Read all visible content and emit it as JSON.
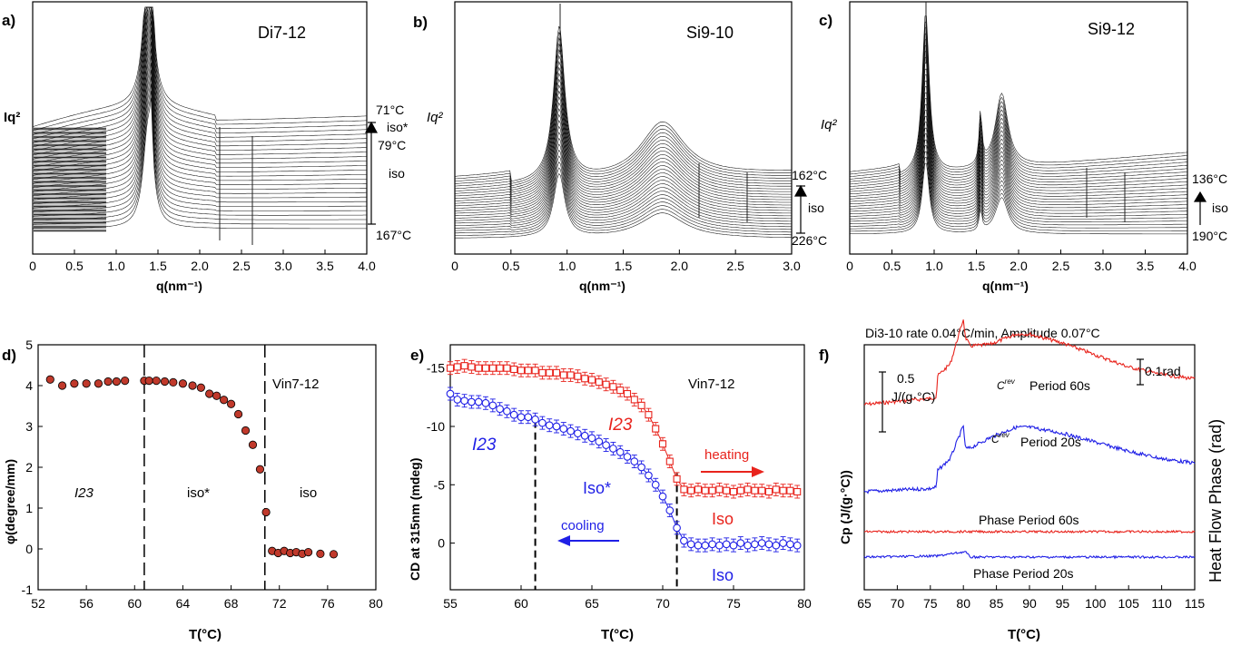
{
  "colors": {
    "red": "#e8231c",
    "blue": "#1f1fe6",
    "black": "#000000",
    "gray_fill": "#9a9a9a"
  },
  "panels": {
    "a": {
      "label": "a)",
      "sample": "Di7-12",
      "ylabel": "Iq²",
      "temps": [
        "71°C",
        "iso*",
        "79°C",
        "iso",
        "167°C"
      ],
      "xticks": [
        "0",
        "0.5",
        "1.0",
        "1.5",
        "2.0",
        "2.5",
        "3.0",
        "3.5",
        "4.0"
      ],
      "xlabel": "q(nm⁻¹)"
    },
    "b": {
      "label": "b)",
      "sample": "Si9-10",
      "ylabel": "Iq²",
      "temps": [
        "162°C",
        "iso",
        "226°C"
      ],
      "xticks": [
        "0",
        "0.5",
        "1.0",
        "1.5",
        "2.0",
        "2.5",
        "3.0"
      ],
      "xlabel": "q(nm⁻¹)"
    },
    "c": {
      "label": "c)",
      "sample": "Si9-12",
      "ylabel": "Iq²",
      "temps": [
        "136°C",
        "iso",
        "190°C"
      ],
      "xticks": [
        "0",
        "0.5",
        "1.0",
        "1.5",
        "2.0",
        "2.5",
        "3.0",
        "3.5",
        "4.0"
      ],
      "xlabel": "q(nm⁻¹)"
    },
    "d": {
      "label": "d)",
      "sample": "Vin7-12",
      "ylabel": "φ(degree/mm)",
      "xlabel": "T(°C)",
      "regions": [
        "I23",
        "iso*",
        "iso"
      ]
    },
    "e": {
      "label": "e)",
      "sample": "Vin7-12",
      "ylabel": "CD at 315nm (mdeg)",
      "xlabel": "T(°C)",
      "annotations": {
        "i23_red": "I23",
        "i23_blue": "I23",
        "iso_star": "Iso*",
        "iso_red": "Iso",
        "iso_blue": "Iso",
        "heating": "heating",
        "cooling": "cooling"
      }
    },
    "f": {
      "label": "f)",
      "title": "Di3-10 rate 0.04°C/min, Amplitude 0.07°C",
      "ylabel": "Cp (J/(g·°C))",
      "ylabel_right": "Heat Flow Phase (rad)",
      "xlabel": "T(°C)",
      "scalebar_cp": [
        "0.5",
        "J/(g·°C)"
      ],
      "scalebar_rad": "0.1rad",
      "curve_labels": [
        "Period 60s",
        "Period 20s",
        "Phase Period 60s",
        "Phase Period 20s"
      ],
      "cp_symbol": "C",
      "cp_superscript": "rev"
    }
  },
  "chart_data": [
    {
      "type": "line",
      "panel": "a",
      "xlabel": "q(nm⁻¹)",
      "ylabel": "Iq²",
      "xlim": [
        0,
        4.0
      ],
      "peaks_q": [
        1.38,
        1.42
      ],
      "temperature_range": [
        "71°C",
        "167°C"
      ],
      "phases": [
        "iso*",
        "iso"
      ]
    },
    {
      "type": "line",
      "panel": "b",
      "xlabel": "q(nm⁻¹)",
      "ylabel": "Iq²",
      "xlim": [
        0,
        3.0
      ],
      "peaks_q": [
        0.93,
        1.85
      ],
      "temperature_range": [
        "162°C",
        "226°C"
      ],
      "phases": [
        "iso"
      ]
    },
    {
      "type": "line",
      "panel": "c",
      "xlabel": "q(nm⁻¹)",
      "ylabel": "Iq²",
      "xlim": [
        0,
        4.0
      ],
      "peaks_q": [
        0.9,
        1.55,
        1.8
      ],
      "temperature_range": [
        "136°C",
        "190°C"
      ],
      "phases": [
        "iso"
      ]
    },
    {
      "type": "scatter",
      "panel": "d",
      "xlabel": "T(°C)",
      "ylabel": "φ(degree/mm)",
      "xlim": [
        52,
        80
      ],
      "ylim": [
        -1,
        5
      ],
      "xticks": [
        52,
        56,
        60,
        64,
        68,
        72,
        76,
        80
      ],
      "yticks": [
        -1,
        0,
        1,
        2,
        3,
        4,
        5
      ],
      "vlines": [
        60.8,
        70.8
      ],
      "x": [
        53.0,
        54.0,
        55.0,
        56.0,
        57.0,
        57.8,
        58.5,
        59.2,
        60.8,
        61.2,
        61.8,
        62.5,
        63.2,
        64.0,
        64.8,
        65.5,
        66.2,
        66.8,
        67.4,
        68.0,
        68.6,
        69.2,
        69.8,
        70.4,
        70.9,
        71.4,
        71.9,
        72.4,
        72.9,
        73.4,
        73.9,
        74.4,
        75.4,
        76.5
      ],
      "y": [
        4.15,
        4.0,
        4.05,
        4.05,
        4.05,
        4.1,
        4.1,
        4.12,
        4.12,
        4.12,
        4.12,
        4.1,
        4.08,
        4.05,
        4.0,
        3.95,
        3.8,
        3.75,
        3.65,
        3.55,
        3.3,
        2.9,
        2.55,
        1.95,
        0.9,
        -0.05,
        -0.1,
        -0.05,
        -0.1,
        -0.08,
        -0.12,
        -0.08,
        -0.12,
        -0.13
      ]
    },
    {
      "type": "line",
      "panel": "e",
      "xlabel": "T(°C)",
      "ylabel": "CD at 315nm (mdeg)",
      "xlim": [
        55,
        80
      ],
      "ylim": [
        -17,
        4
      ],
      "y_inverted": true,
      "xticks": [
        55,
        60,
        65,
        70,
        75,
        80
      ],
      "yticks": [
        -15,
        -10,
        -5,
        0
      ],
      "vlines": [
        61,
        71
      ],
      "series": [
        {
          "name": "heating",
          "x": [
            55.0,
            55.5,
            56.0,
            56.5,
            57.0,
            57.5,
            58.0,
            58.5,
            59.0,
            59.5,
            60.0,
            60.5,
            61.0,
            61.5,
            62.0,
            62.5,
            63.0,
            63.5,
            64.0,
            64.5,
            65.0,
            65.5,
            66.0,
            66.5,
            67.0,
            67.5,
            68.0,
            68.5,
            69.0,
            69.5,
            70.0,
            70.5,
            71.0,
            71.5,
            72.0,
            72.5,
            73.0,
            73.5,
            74.0,
            74.5,
            75.0,
            75.5,
            76.0,
            76.5,
            77.0,
            77.5,
            78.0,
            78.5,
            79.0,
            79.5
          ],
          "y": [
            -15.0,
            -15.1,
            -15.2,
            -15.1,
            -15.0,
            -15.0,
            -15.0,
            -15.0,
            -15.0,
            -14.9,
            -14.8,
            -14.8,
            -14.8,
            -14.6,
            -14.6,
            -14.6,
            -14.4,
            -14.4,
            -14.3,
            -14.1,
            -14.0,
            -13.8,
            -13.6,
            -13.4,
            -13.1,
            -12.8,
            -12.3,
            -11.8,
            -11.0,
            -9.8,
            -8.5,
            -7.0,
            -5.5,
            -4.6,
            -4.5,
            -4.6,
            -4.5,
            -4.5,
            -4.6,
            -4.5,
            -4.4,
            -4.5,
            -4.6,
            -4.5,
            -4.5,
            -4.4,
            -4.6,
            -4.5,
            -4.5,
            -4.4
          ]
        },
        {
          "name": "cooling",
          "x": [
            55.0,
            55.5,
            56.0,
            56.5,
            57.0,
            57.5,
            58.0,
            58.5,
            59.0,
            59.5,
            60.0,
            60.5,
            61.0,
            61.5,
            62.0,
            62.5,
            63.0,
            63.5,
            64.0,
            64.5,
            65.0,
            65.5,
            66.0,
            66.5,
            67.0,
            67.5,
            68.0,
            68.5,
            69.0,
            69.5,
            70.0,
            70.5,
            71.0,
            71.5,
            72.0,
            72.5,
            73.0,
            73.5,
            74.0,
            74.5,
            75.0,
            75.5,
            76.0,
            76.5,
            77.0,
            77.5,
            78.0,
            78.5,
            79.0,
            79.5
          ],
          "y": [
            -12.8,
            -12.3,
            -12.2,
            -12.1,
            -12.1,
            -12.0,
            -11.8,
            -11.5,
            -11.3,
            -11.0,
            -10.8,
            -10.8,
            -10.6,
            -10.3,
            -10.1,
            -10.0,
            -9.8,
            -9.6,
            -9.4,
            -9.2,
            -9.0,
            -8.7,
            -8.4,
            -8.1,
            -7.8,
            -7.4,
            -7.0,
            -6.5,
            -5.8,
            -5.0,
            -4.0,
            -2.8,
            -1.3,
            -0.2,
            0.1,
            0.2,
            0.2,
            0.1,
            0.2,
            0.1,
            0.2,
            0.0,
            0.2,
            0.1,
            0.0,
            0.1,
            0.2,
            0.0,
            0.1,
            0.2
          ]
        }
      ]
    },
    {
      "type": "line",
      "panel": "f",
      "xlabel": "T(°C)",
      "ylabel": "Cp (J/(g·°C))",
      "y2label": "Heat Flow Phase (rad)",
      "xlim": [
        65,
        115
      ],
      "xticks": [
        65,
        70,
        75,
        80,
        85,
        90,
        95,
        100,
        105,
        110,
        115
      ],
      "features_x": [
        76,
        80.3
      ],
      "series": [
        {
          "name": "Period 60s",
          "x": [
            65,
            70,
            75,
            75.9,
            76.1,
            78,
            80.0,
            80.3,
            81,
            84,
            88,
            90,
            95,
            100,
            105,
            110,
            115
          ],
          "y": [
            0.45,
            0.47,
            0.49,
            0.5,
            0.64,
            0.72,
            1.02,
            0.9,
            0.84,
            0.85,
            0.92,
            0.92,
            0.86,
            0.78,
            0.7,
            0.65,
            0.62
          ]
        },
        {
          "name": "Period 20s",
          "x": [
            65,
            70,
            75,
            75.9,
            76.1,
            78,
            80.0,
            80.3,
            81,
            84,
            88,
            90,
            95,
            100,
            105,
            110,
            115
          ],
          "y": [
            0.11,
            0.12,
            0.13,
            0.14,
            0.25,
            0.33,
            0.55,
            0.4,
            0.4,
            0.47,
            0.54,
            0.54,
            0.5,
            0.44,
            0.38,
            0.33,
            0.3
          ]
        },
        {
          "name": "Phase Period 60s",
          "x": [
            65,
            80,
            115
          ],
          "y": [
            0,
            0,
            0
          ]
        },
        {
          "name": "Phase Period 20s",
          "x": [
            65,
            76,
            80.3,
            81,
            115
          ],
          "y": [
            0,
            0.02,
            0.1,
            0.0,
            0
          ]
        }
      ]
    }
  ]
}
